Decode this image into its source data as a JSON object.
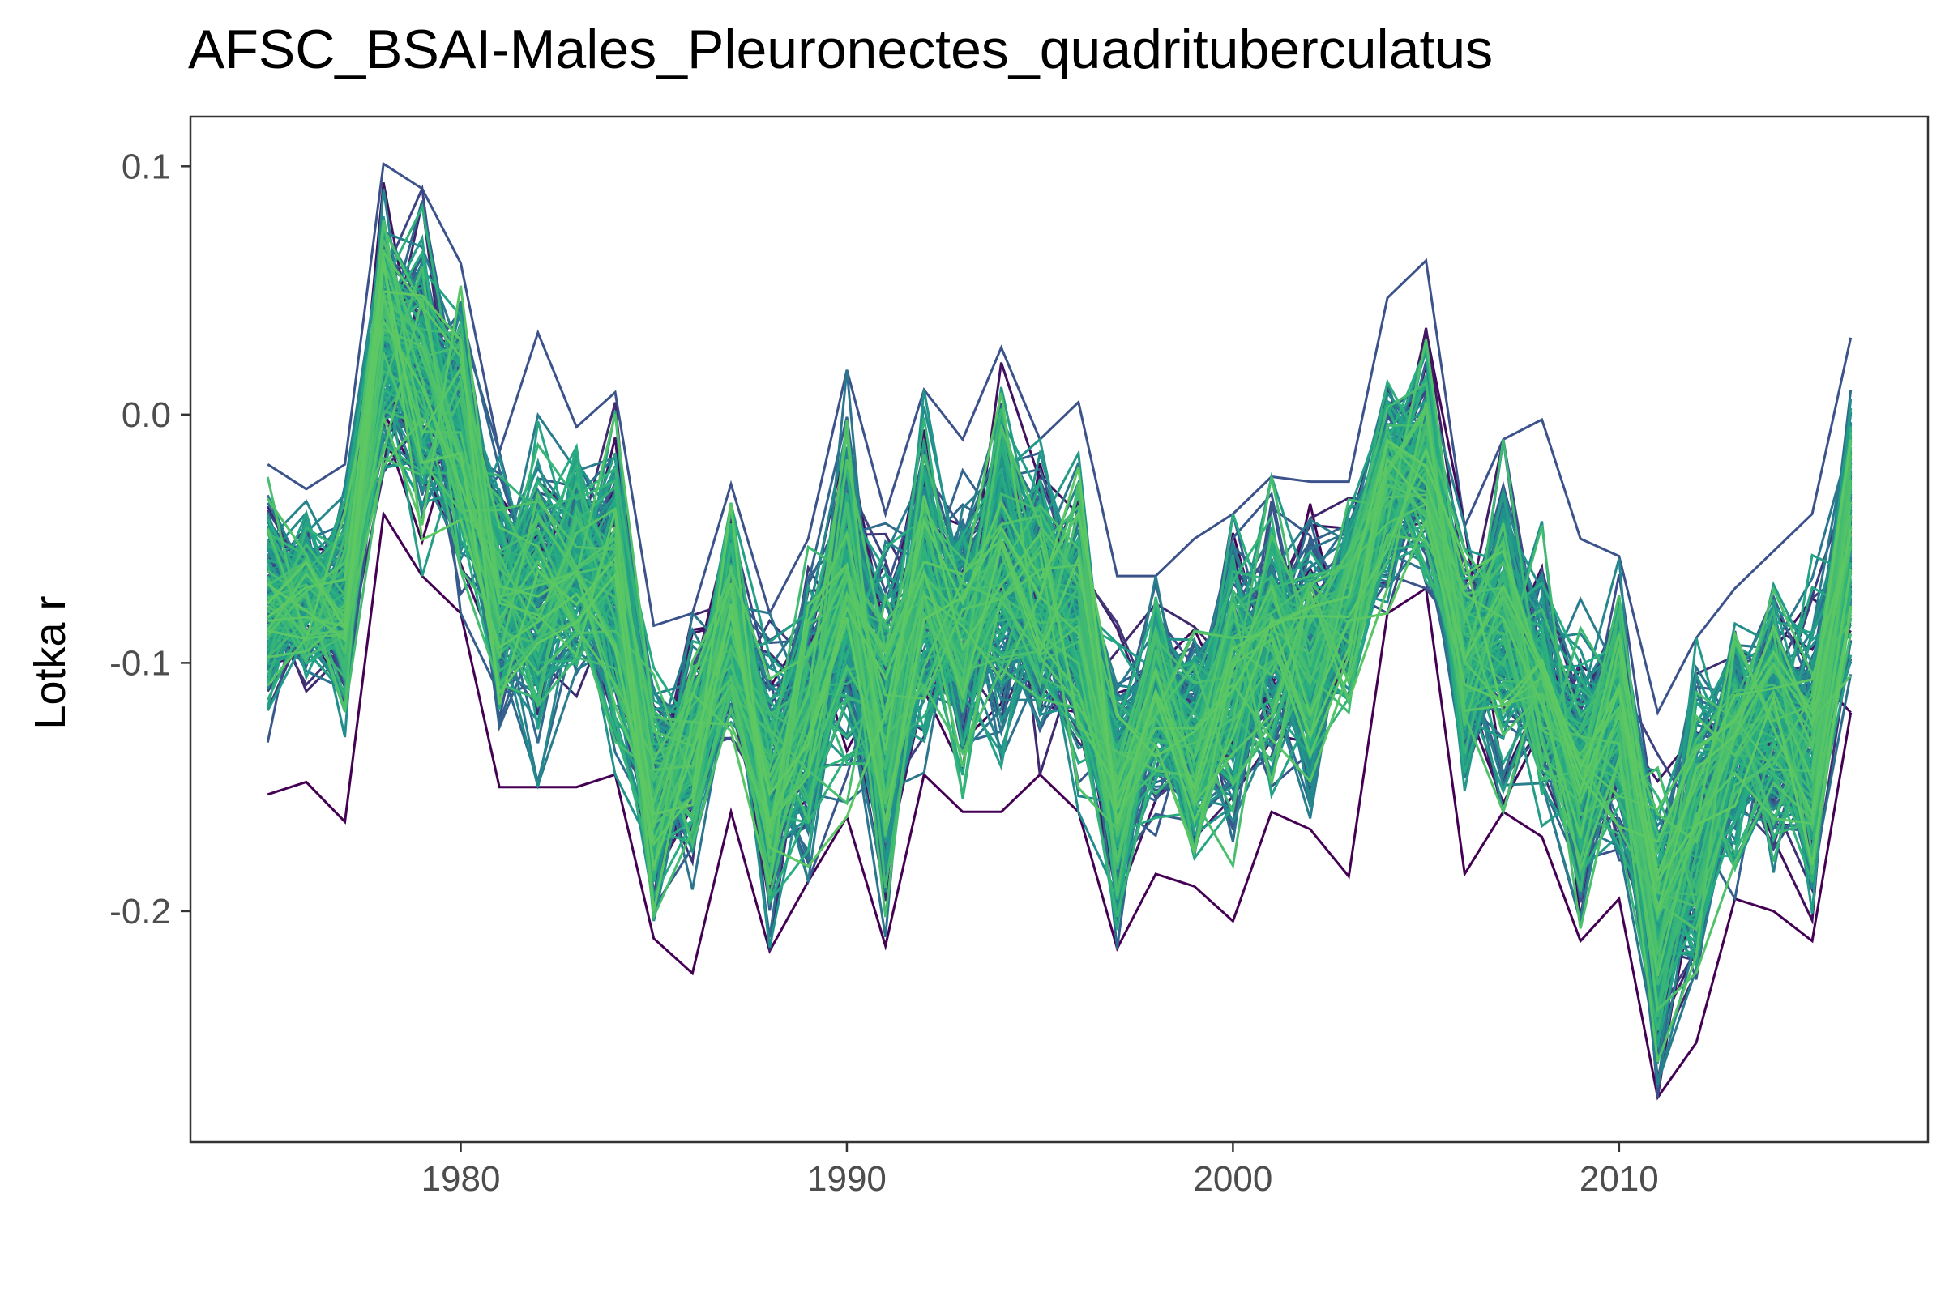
{
  "chart_data": {
    "type": "line",
    "title": "AFSC_BSAI-Males_Pleuronectes_quadrituberculatus",
    "xlabel": "",
    "ylabel": "Lotka r",
    "xlim": [
      1973,
      2018
    ],
    "ylim": [
      -0.293,
      0.12
    ],
    "x_ticks": [
      1980,
      1990,
      2000,
      2010
    ],
    "x_tick_labels": [
      "1980",
      "1990",
      "2000",
      "2010"
    ],
    "y_ticks": [
      0.1,
      0.0,
      -0.1,
      -0.2
    ],
    "y_tick_labels": [
      "0.1",
      "0.0",
      "-0.1",
      "-0.2"
    ],
    "grid": false,
    "legend": "none",
    "palette": [
      "#440154",
      "#3b528b",
      "#2c728e",
      "#21918c",
      "#27ad81",
      "#5ec962"
    ],
    "n_series_approx": 200,
    "x": [
      1975,
      1976,
      1977,
      1978,
      1979,
      1980,
      1981,
      1982,
      1983,
      1984,
      1985,
      1986,
      1987,
      1988,
      1989,
      1990,
      1991,
      1992,
      1993,
      1994,
      1995,
      1996,
      1997,
      1998,
      1999,
      2000,
      2001,
      2002,
      2003,
      2004,
      2005,
      2006,
      2007,
      2008,
      2009,
      2010,
      2011,
      2012,
      2013,
      2014,
      2015,
      2016
    ],
    "central_values": [
      -0.075,
      -0.072,
      -0.078,
      0.035,
      0.015,
      -0.01,
      -0.07,
      -0.075,
      -0.06,
      -0.07,
      -0.155,
      -0.135,
      -0.085,
      -0.15,
      -0.12,
      -0.075,
      -0.125,
      -0.07,
      -0.09,
      -0.06,
      -0.075,
      -0.085,
      -0.15,
      -0.115,
      -0.135,
      -0.11,
      -0.09,
      -0.1,
      -0.075,
      -0.03,
      -0.02,
      -0.1,
      -0.085,
      -0.11,
      -0.145,
      -0.12,
      -0.21,
      -0.165,
      -0.135,
      -0.125,
      -0.135,
      -0.05
    ],
    "min_values": [
      -0.153,
      -0.148,
      -0.164,
      -0.04,
      -0.065,
      -0.08,
      -0.15,
      -0.15,
      -0.15,
      -0.145,
      -0.211,
      -0.225,
      -0.16,
      -0.216,
      -0.188,
      -0.162,
      -0.214,
      -0.145,
      -0.16,
      -0.16,
      -0.145,
      -0.16,
      -0.215,
      -0.185,
      -0.19,
      -0.204,
      -0.16,
      -0.167,
      -0.186,
      -0.08,
      -0.07,
      -0.185,
      -0.16,
      -0.17,
      -0.212,
      -0.195,
      -0.275,
      -0.253,
      -0.195,
      -0.2,
      -0.212,
      -0.12
    ],
    "max_values": [
      -0.02,
      -0.03,
      -0.02,
      0.101,
      0.091,
      0.061,
      -0.015,
      0.033,
      -0.005,
      0.009,
      -0.085,
      -0.08,
      -0.028,
      -0.08,
      -0.05,
      0.018,
      -0.04,
      0.01,
      -0.01,
      0.027,
      -0.01,
      0.005,
      -0.065,
      -0.065,
      -0.05,
      -0.04,
      -0.025,
      -0.027,
      -0.027,
      0.047,
      0.062,
      -0.045,
      -0.01,
      -0.002,
      -0.05,
      -0.057,
      -0.12,
      -0.09,
      -0.07,
      -0.055,
      -0.04,
      0.031
    ]
  }
}
